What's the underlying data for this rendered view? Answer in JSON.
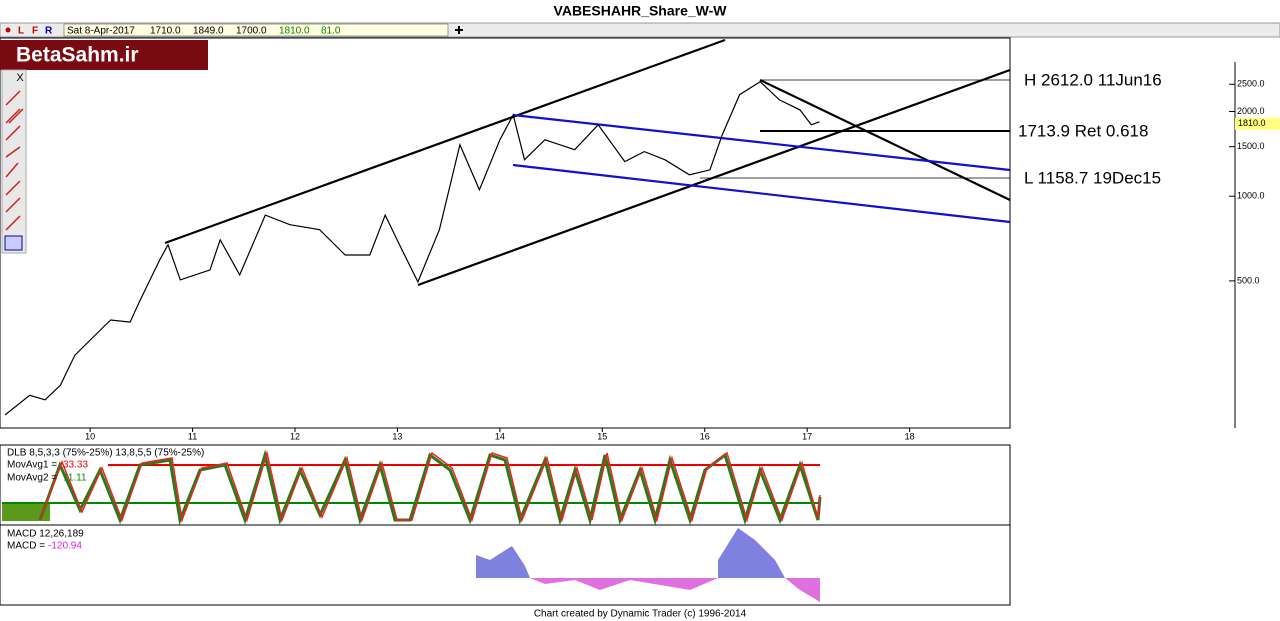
{
  "header": {
    "title": "VABESHAHR_Share_W-W"
  },
  "toolbar": {
    "modes": [
      "L",
      "F",
      "R"
    ],
    "date": "Sat 8-Apr-2017",
    "open": "1710.0",
    "high": "1849.0",
    "low": "1700.0",
    "close": "1810.0",
    "volume": "81.0"
  },
  "logo": "BetaSahm.ir",
  "chart_data": {
    "type": "line",
    "log": true,
    "color": "#000000",
    "x": [
      9.17,
      9.41,
      9.56,
      9.71,
      9.85,
      10.05,
      10.2,
      10.39,
      10.49,
      10.68,
      10.76,
      10.88,
      11.17,
      11.27,
      11.46,
      11.71,
      11.95,
      12.24,
      12.49,
      12.73,
      12.88,
      13.02,
      13.2,
      13.41,
      13.61,
      13.8,
      14.0,
      14.13,
      14.24,
      14.44,
      14.73,
      14.96,
      15.22,
      15.41,
      15.61,
      15.85,
      16.05,
      16.17,
      16.34,
      16.54,
      16.73,
      16.93,
      17.04,
      17.12
    ],
    "values": [
      167,
      196,
      189,
      213,
      272,
      321,
      363,
      357,
      428,
      594,
      672,
      504,
      547,
      700,
      525,
      857,
      792,
      760,
      618,
      618,
      857,
      672,
      496,
      760,
      1524,
      1054,
      1587,
      1945,
      1348,
      1587,
      1463,
      1794,
      1327,
      1440,
      1348,
      1191,
      1240,
      1652,
      2294,
      2553,
      2200,
      2027,
      1794,
      1838
    ],
    "xlim": [
      9.12,
      18.98
    ],
    "ylim": [
      150,
      3650
    ],
    "xticks": [
      10,
      11,
      12,
      13,
      14,
      15,
      16,
      17,
      18
    ],
    "yticks": [
      {
        "value": 500,
        "label": "500.0"
      },
      {
        "value": 1000,
        "label": "1000.0"
      },
      {
        "value": 1500,
        "label": "1500.0"
      },
      {
        "value": 2000,
        "label": "2000.0"
      },
      {
        "value": 2500,
        "label": "2500.0"
      }
    ],
    "last_price": {
      "value": 1810,
      "label": "1810.0"
    },
    "annotations": [
      "H 2612.0 11Jun16",
      "1713.9 Ret 0.618",
      "L 1158.7 19Dec15"
    ]
  },
  "indicators": {
    "dlb": "DLB 8,5,3,3 (75%-25%) 13,8,5,5 (75%-25%)",
    "movavg1_label": "MovAvg1 =",
    "movavg1": 33.33,
    "movavg2_label": "MovAvg2 =",
    "movavg2": 11.11,
    "macd_title": "MACD 12,26,189",
    "macd_label": "MACD =",
    "macd": -120.94
  },
  "footer": "Chart created by Dynamic Trader  (c)  1996-2014"
}
